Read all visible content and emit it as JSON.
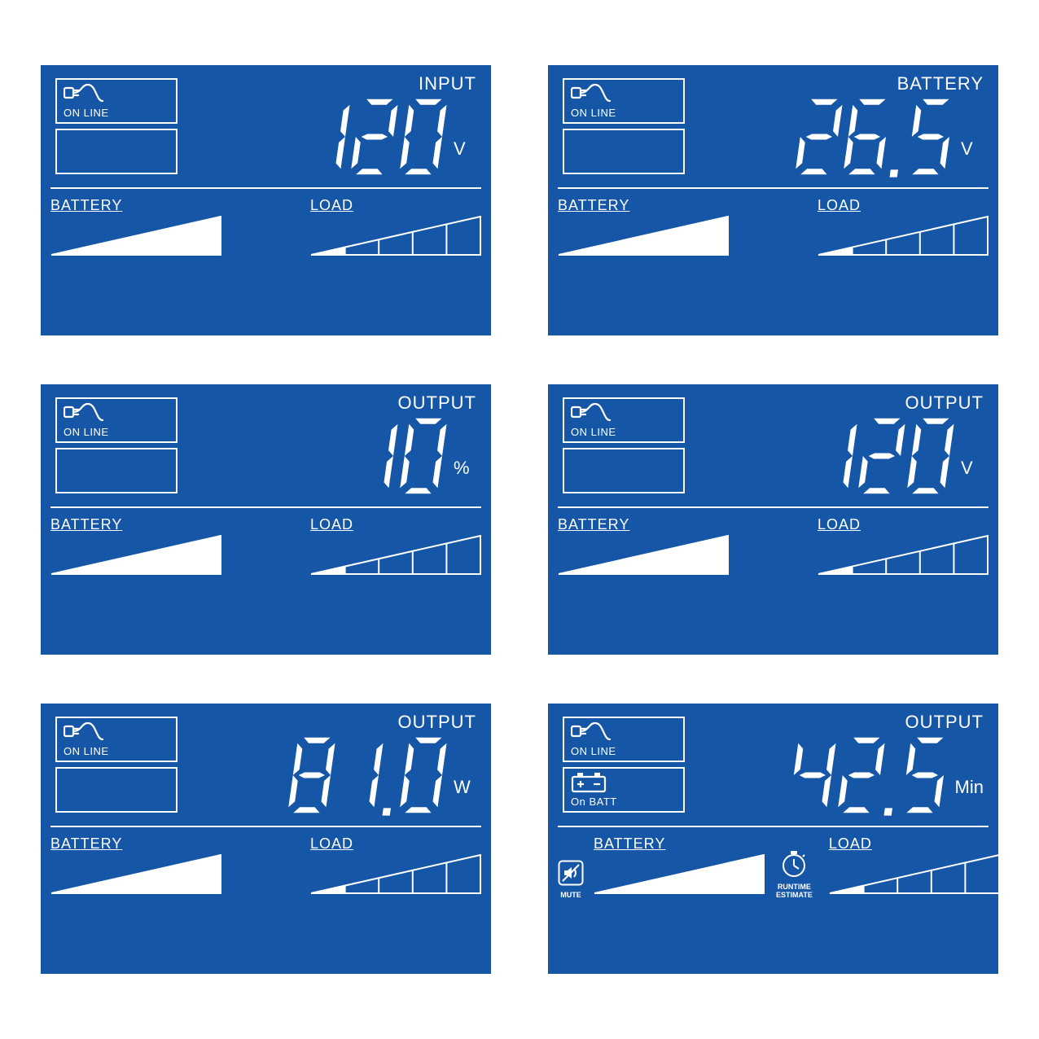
{
  "colors": {
    "panel_bg": "#1656a6",
    "fg": "#ffffff"
  },
  "labels": {
    "online": "ON LINE",
    "onbatt": "On BATT",
    "battery": "BATTERY",
    "load": "LOAD",
    "mute": "MUTE",
    "runtime1": "RUNTIME",
    "runtime2": "ESTIMATE"
  },
  "panels": [
    {
      "status1": "online",
      "status2": null,
      "param": "INPUT",
      "value": "120",
      "unit": "V",
      "batt_fill": 5,
      "load_fill": 1,
      "extras": false
    },
    {
      "status1": "online",
      "status2": null,
      "param": "BATTERY",
      "value": "26.5",
      "unit": "V",
      "batt_fill": 5,
      "load_fill": 1,
      "extras": false
    },
    {
      "status1": "online",
      "status2": null,
      "param": "OUTPUT",
      "value": "10",
      "unit": "%",
      "batt_fill": 5,
      "load_fill": 1,
      "extras": false
    },
    {
      "status1": "online",
      "status2": null,
      "param": "OUTPUT",
      "value": "120",
      "unit": "V",
      "batt_fill": 5,
      "load_fill": 1,
      "extras": false
    },
    {
      "status1": "online",
      "status2": null,
      "param": "OUTPUT",
      "value": "81.0",
      "unit": "W",
      "batt_fill": 5,
      "load_fill": 1,
      "extras": false
    },
    {
      "status1": "online",
      "status2": "onbatt",
      "param": "OUTPUT",
      "value": "42.5",
      "unit": "Min",
      "batt_fill": 5,
      "load_fill": 1,
      "extras": true
    }
  ]
}
